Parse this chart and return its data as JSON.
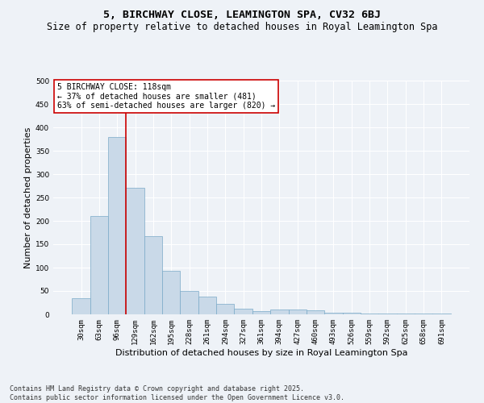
{
  "title": "5, BIRCHWAY CLOSE, LEAMINGTON SPA, CV32 6BJ",
  "subtitle": "Size of property relative to detached houses in Royal Leamington Spa",
  "xlabel": "Distribution of detached houses by size in Royal Leamington Spa",
  "ylabel": "Number of detached properties",
  "footnote": "Contains HM Land Registry data © Crown copyright and database right 2025.\nContains public sector information licensed under the Open Government Licence v3.0.",
  "categories": [
    "30sqm",
    "63sqm",
    "96sqm",
    "129sqm",
    "162sqm",
    "195sqm",
    "228sqm",
    "261sqm",
    "294sqm",
    "327sqm",
    "361sqm",
    "394sqm",
    "427sqm",
    "460sqm",
    "493sqm",
    "526sqm",
    "559sqm",
    "592sqm",
    "625sqm",
    "658sqm",
    "691sqm"
  ],
  "values": [
    35,
    210,
    380,
    270,
    168,
    93,
    50,
    38,
    22,
    12,
    7,
    11,
    11,
    8,
    4,
    4,
    2,
    1,
    1,
    1,
    1
  ],
  "bar_color": "#c9d9e8",
  "bar_edge_color": "#7aaac8",
  "vline_color": "#cc0000",
  "vline_position": 2.5,
  "annotation_text": "5 BIRCHWAY CLOSE: 118sqm\n← 37% of detached houses are smaller (481)\n63% of semi-detached houses are larger (820) →",
  "annotation_box_color": "#ffffff",
  "annotation_box_edge": "#cc0000",
  "ylim": [
    0,
    500
  ],
  "yticks": [
    0,
    50,
    100,
    150,
    200,
    250,
    300,
    350,
    400,
    450,
    500
  ],
  "background_color": "#eef2f7",
  "grid_color": "#ffffff",
  "title_fontsize": 9.5,
  "subtitle_fontsize": 8.5,
  "axis_label_fontsize": 8,
  "tick_fontsize": 6.5,
  "annotation_fontsize": 7,
  "footnote_fontsize": 6
}
